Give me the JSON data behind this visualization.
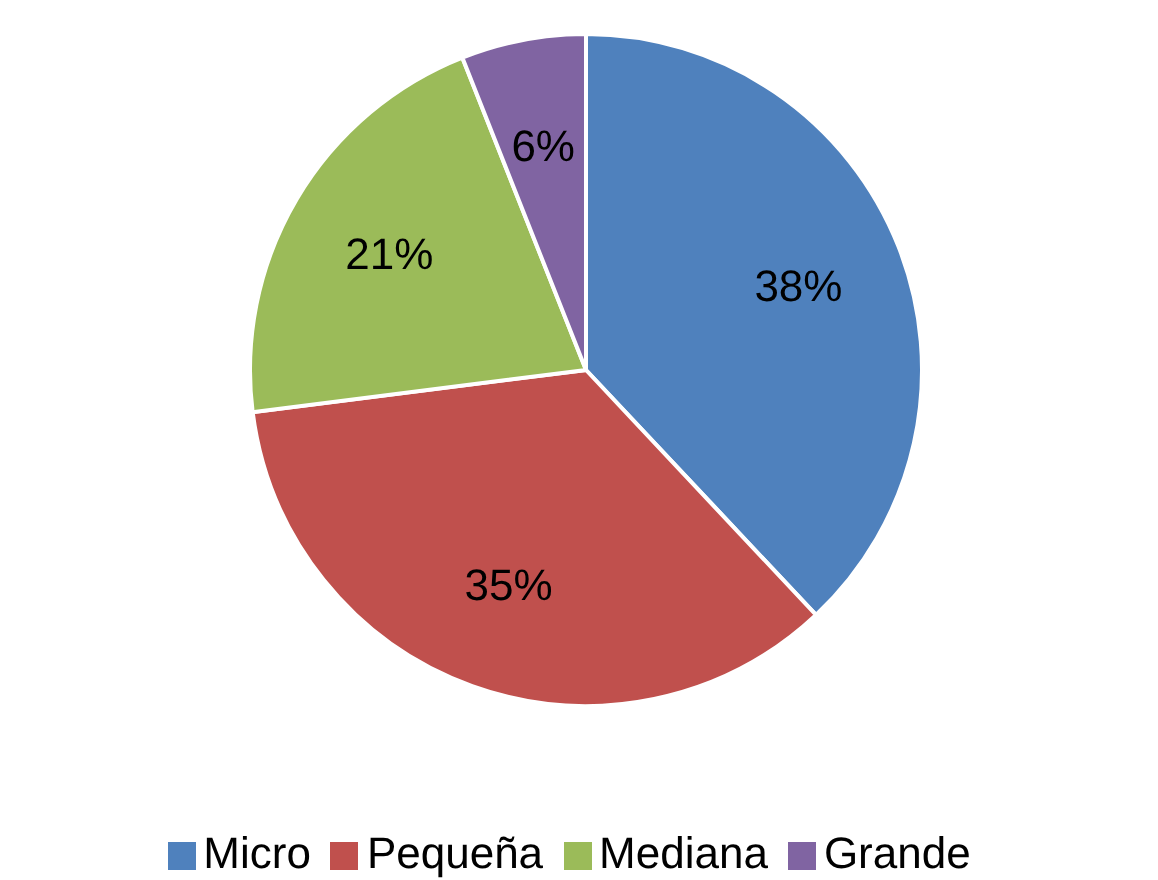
{
  "chart_data": {
    "type": "pie",
    "categories": [
      "Micro",
      "Pequeña",
      "Mediana",
      "Grande"
    ],
    "values": [
      38,
      35,
      21,
      6
    ],
    "colors": [
      "#4f81bd",
      "#c0504d",
      "#9bbb59",
      "#8064a2"
    ],
    "value_labels": [
      "38%",
      "35%",
      "21%",
      "6%"
    ],
    "legend": "bottom"
  }
}
